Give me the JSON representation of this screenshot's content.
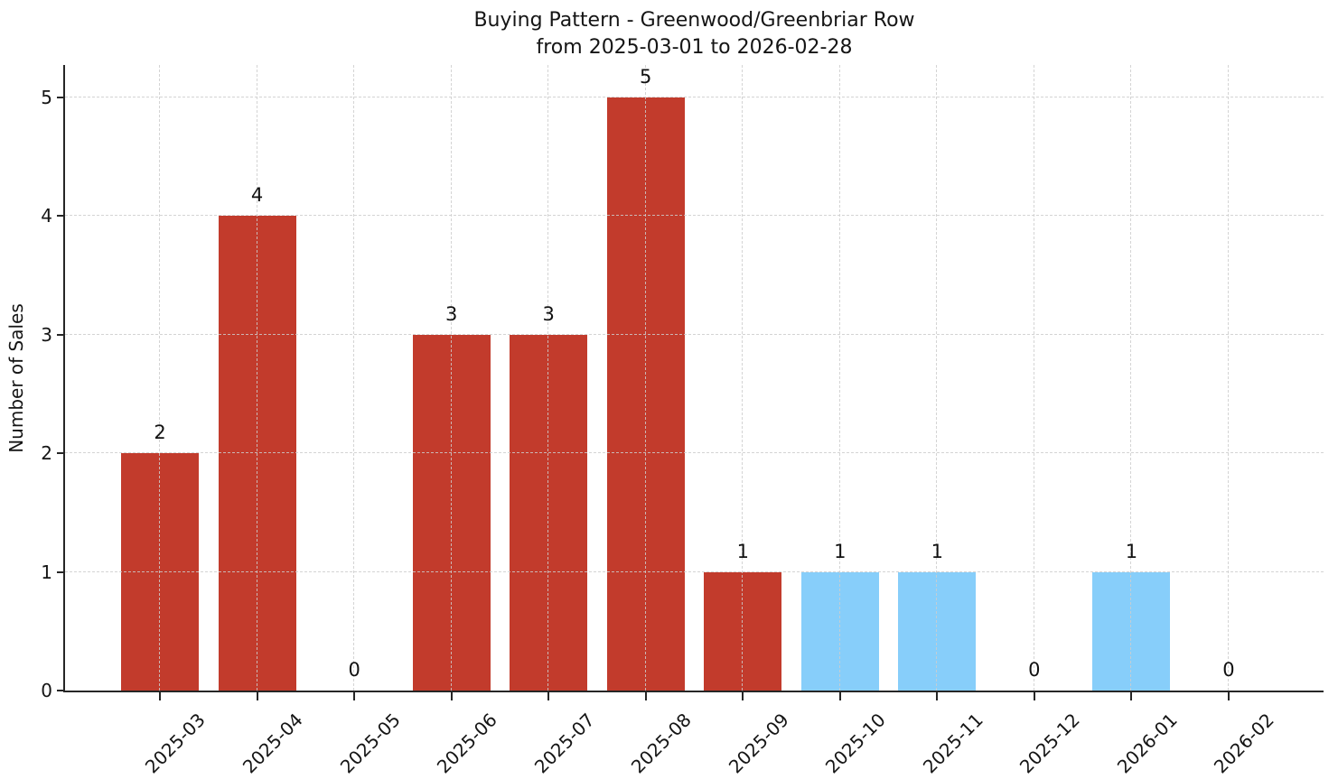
{
  "title": {
    "line1": "Buying Pattern - Greenwood/Greenbriar Row",
    "line2": "from 2025-03-01 to 2026-02-28"
  },
  "chart_data": {
    "type": "bar",
    "title": "Buying Pattern - Greenwood/Greenbriar Row\nfrom 2025-03-01 to 2026-02-28",
    "categories": [
      "2025-03",
      "2025-04",
      "2025-05",
      "2025-06",
      "2025-07",
      "2025-08",
      "2025-09",
      "2025-10",
      "2025-11",
      "2025-12",
      "2026-01",
      "2026-02"
    ],
    "values": [
      2,
      4,
      0,
      3,
      3,
      5,
      1,
      1,
      1,
      0,
      1,
      0
    ],
    "bar_value_labels": [
      "2",
      "4",
      "0",
      "3",
      "3",
      "5",
      "1",
      "1",
      "1",
      "0",
      "1",
      "0"
    ],
    "bar_colors": [
      "#c23b2c",
      "#c23b2c",
      "#c23b2c",
      "#c23b2c",
      "#c23b2c",
      "#c23b2c",
      "#c23b2c",
      "#87cefa",
      "#87cefa",
      "#87cefa",
      "#87cefa",
      "#87cefa"
    ],
    "xlabel": "",
    "ylabel": "Number of Sales",
    "yticks": [
      0,
      1,
      2,
      3,
      4,
      5
    ],
    "ylim": [
      0,
      5.27
    ],
    "xlim": [
      -0.977,
      11.977
    ],
    "bar_width_fraction": 0.8,
    "grid": {
      "style": "dashed",
      "axes": "both",
      "drawn_above_bars": true
    },
    "legend": "none",
    "colors": {
      "bar_red": "#c23b2c",
      "bar_blue": "#87cefa",
      "grid": "#cdcdcd",
      "axis": "#262626",
      "text": "#151515",
      "background": "#ffffff"
    }
  }
}
